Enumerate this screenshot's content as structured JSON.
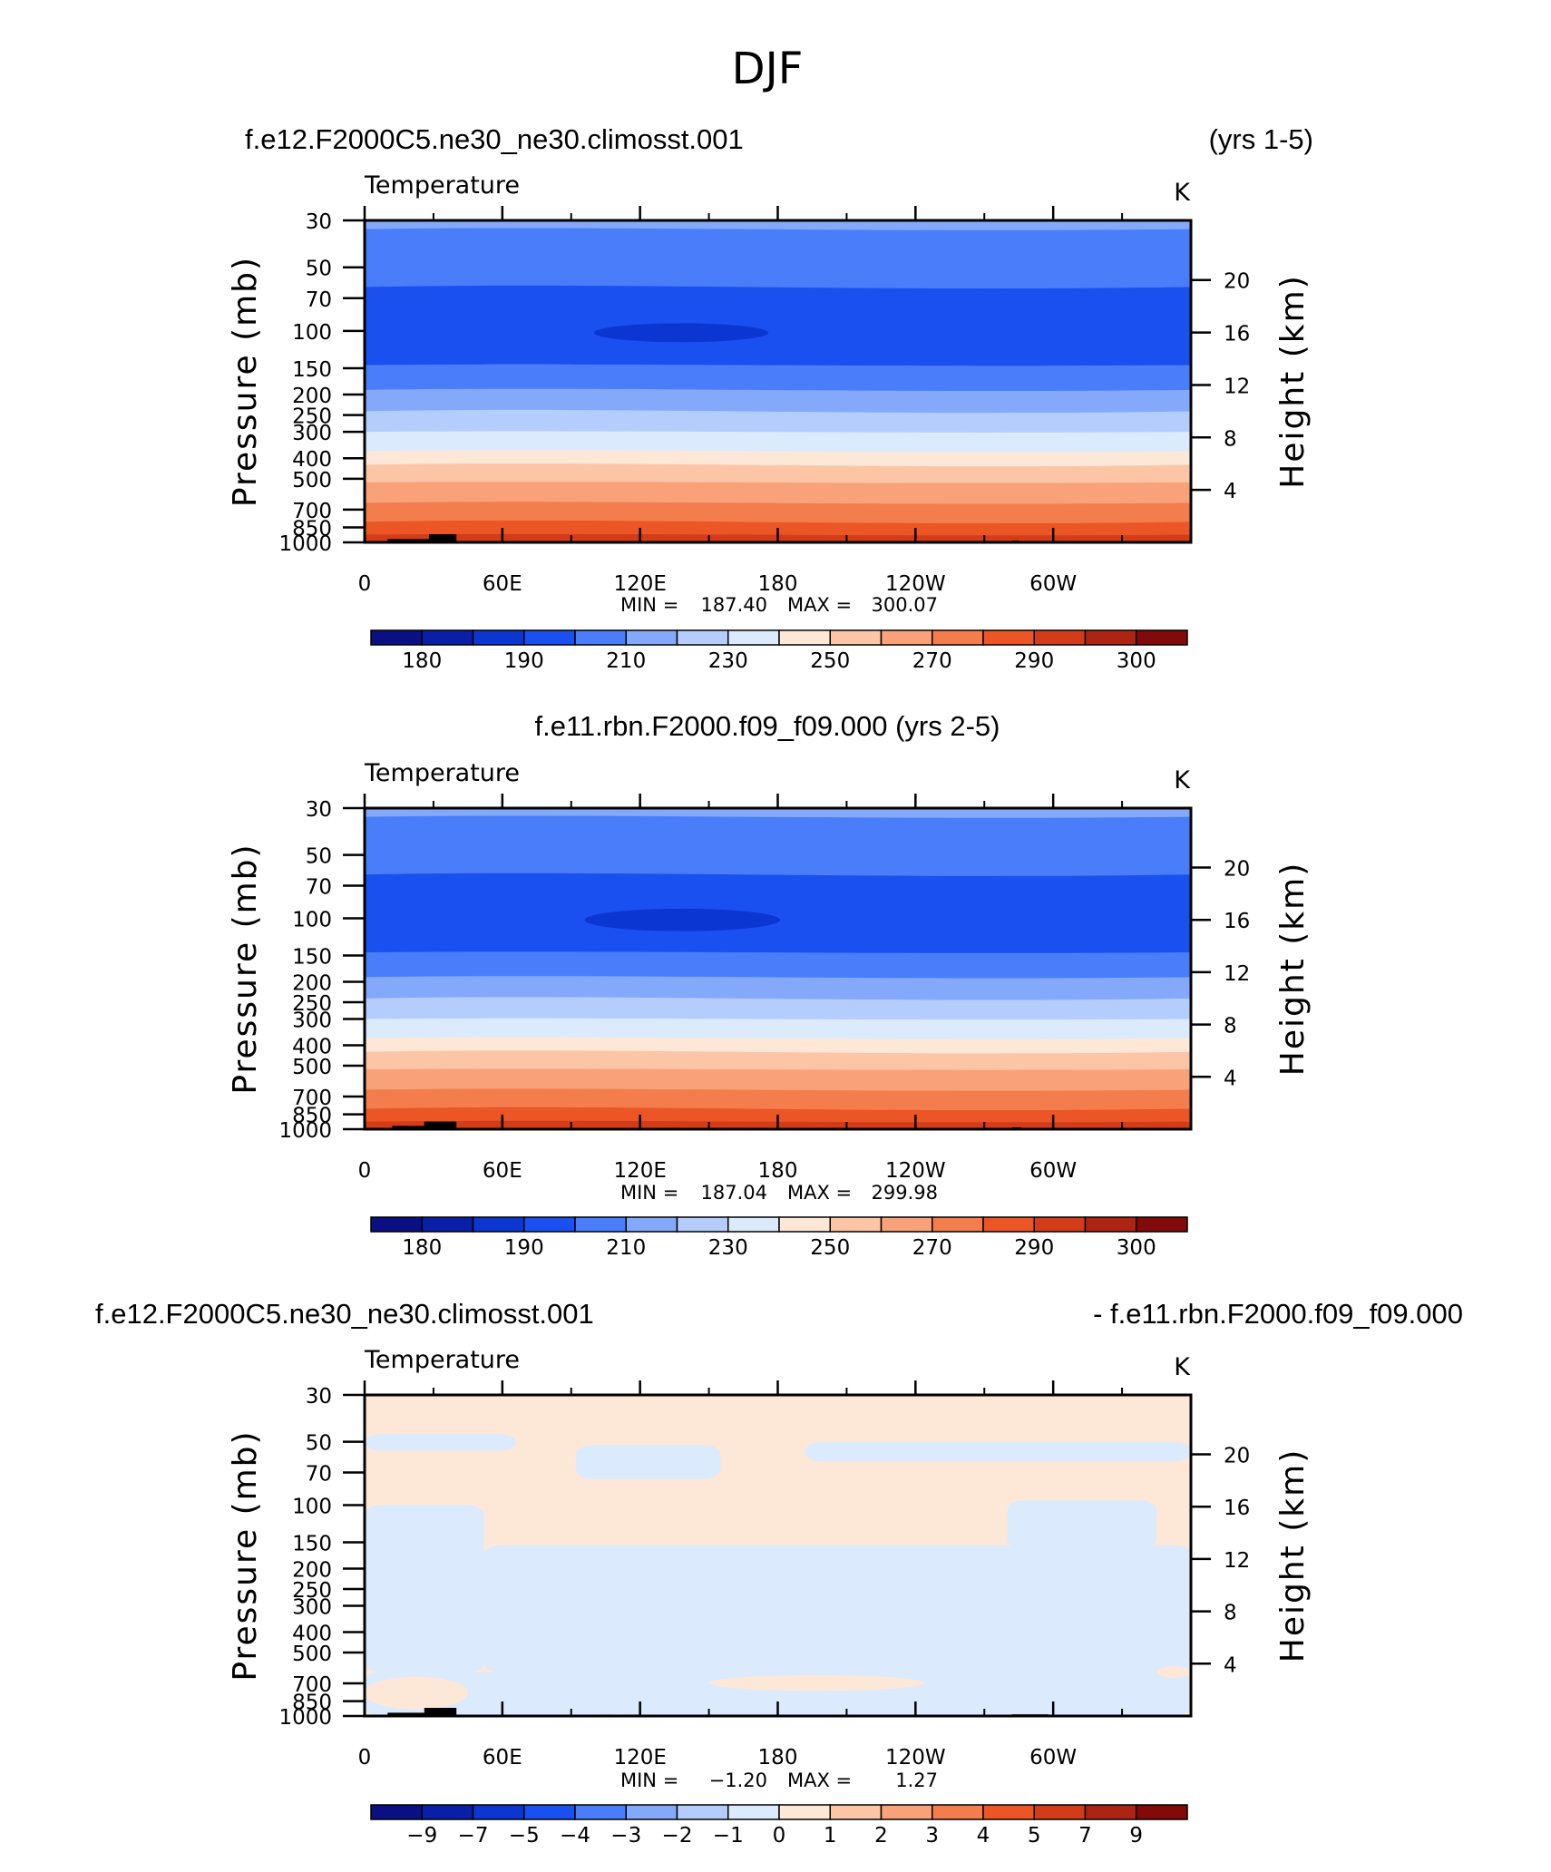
{
  "figure_title": "DJF",
  "chart_data": [
    {
      "type": "heatmap",
      "title_left": "f.e12.F2000C5.ne30_ne30.climosst.001",
      "title_right": "(yrs 1-5)",
      "variable": "Temperature",
      "units": "K",
      "ylabel": "Pressure (mb)",
      "ylabel_right": "Height (km)",
      "xticks": [
        "0",
        "60E",
        "120E",
        "180",
        "120W",
        "60W"
      ],
      "yticks": [
        "30",
        "50",
        "70",
        "100",
        "150",
        "200",
        "250",
        "300",
        "400",
        "500",
        "700",
        "850",
        "1000"
      ],
      "yticks_right": [
        "20",
        "16",
        "12",
        "8",
        "4"
      ],
      "xlim": [
        0,
        360
      ],
      "ylim": [
        1000,
        30
      ],
      "min_label": "MIN =",
      "max_label": "MAX =",
      "min_value": "187.40",
      "max_value": "300.07",
      "colorbar_labels": [
        "180",
        "190",
        "210",
        "230",
        "250",
        "270",
        "290",
        "300"
      ],
      "colorbar_levels": 16,
      "bands": [
        {
          "p_top": 30,
          "p_bottom": 33,
          "level": 5
        },
        {
          "p_top": 33,
          "p_bottom": 62,
          "level": 4
        },
        {
          "p_top": 62,
          "p_bottom": 145,
          "level": 3
        },
        {
          "p_top": 145,
          "p_bottom": 190,
          "level": 4
        },
        {
          "p_top": 190,
          "p_bottom": 240,
          "level": 5
        },
        {
          "p_top": 240,
          "p_bottom": 300,
          "level": 6
        },
        {
          "p_top": 300,
          "p_bottom": 370,
          "level": 7
        },
        {
          "p_top": 370,
          "p_bottom": 430,
          "level": 8
        },
        {
          "p_top": 430,
          "p_bottom": 520,
          "level": 9
        },
        {
          "p_top": 520,
          "p_bottom": 650,
          "level": 10
        },
        {
          "p_top": 650,
          "p_bottom": 800,
          "level": 11
        },
        {
          "p_top": 800,
          "p_bottom": 920,
          "level": 12
        },
        {
          "p_top": 920,
          "p_bottom": 1000,
          "level": 13
        }
      ],
      "cold_core": {
        "lon_start": 92,
        "lon_end": 168,
        "p_top": 92,
        "p_bottom": 113,
        "level": 2
      },
      "terrain": [
        {
          "lon_start": 10,
          "lon_end": 34,
          "p_top": 965
        },
        {
          "lon_start": 28,
          "lon_end": 40,
          "p_top": 915
        },
        {
          "lon_start": 282,
          "lon_end": 285,
          "p_top": 980
        }
      ]
    },
    {
      "type": "heatmap",
      "title_left": "f.e11.rbn.F2000.f09_f09.000 (yrs 2-5)",
      "title_right": "",
      "variable": "Temperature",
      "units": "K",
      "ylabel": "Pressure (mb)",
      "ylabel_right": "Height (km)",
      "xticks": [
        "0",
        "60E",
        "120E",
        "180",
        "120W",
        "60W"
      ],
      "yticks": [
        "30",
        "50",
        "70",
        "100",
        "150",
        "200",
        "250",
        "300",
        "400",
        "500",
        "700",
        "850",
        "1000"
      ],
      "yticks_right": [
        "20",
        "16",
        "12",
        "8",
        "4"
      ],
      "xlim": [
        0,
        360
      ],
      "ylim": [
        1000,
        30
      ],
      "min_label": "MIN =",
      "max_label": "MAX =",
      "min_value": "187.04",
      "max_value": "299.98",
      "colorbar_labels": [
        "180",
        "190",
        "210",
        "230",
        "250",
        "270",
        "290",
        "300"
      ],
      "colorbar_levels": 16,
      "bands": [
        {
          "p_top": 30,
          "p_bottom": 33,
          "level": 5
        },
        {
          "p_top": 33,
          "p_bottom": 62,
          "level": 4
        },
        {
          "p_top": 62,
          "p_bottom": 145,
          "level": 3
        },
        {
          "p_top": 145,
          "p_bottom": 190,
          "level": 4
        },
        {
          "p_top": 190,
          "p_bottom": 240,
          "level": 5
        },
        {
          "p_top": 240,
          "p_bottom": 300,
          "level": 6
        },
        {
          "p_top": 300,
          "p_bottom": 370,
          "level": 7
        },
        {
          "p_top": 370,
          "p_bottom": 430,
          "level": 8
        },
        {
          "p_top": 430,
          "p_bottom": 520,
          "level": 9
        },
        {
          "p_top": 520,
          "p_bottom": 650,
          "level": 10
        },
        {
          "p_top": 650,
          "p_bottom": 800,
          "level": 11
        },
        {
          "p_top": 800,
          "p_bottom": 920,
          "level": 12
        },
        {
          "p_top": 920,
          "p_bottom": 1000,
          "level": 13
        }
      ],
      "cold_core": {
        "lon_start": 88,
        "lon_end": 173,
        "p_top": 90,
        "p_bottom": 115,
        "level": 2
      },
      "terrain": [
        {
          "lon_start": 12,
          "lon_end": 34,
          "p_top": 965
        },
        {
          "lon_start": 26,
          "lon_end": 40,
          "p_top": 920
        },
        {
          "lon_start": 282,
          "lon_end": 286,
          "p_top": 980
        }
      ]
    },
    {
      "type": "heatmap",
      "title_left": "f.e12.F2000C5.ne30_ne30.climosst.001",
      "title_right": "- f.e11.rbn.F2000.f09_f09.000",
      "variable": "Temperature",
      "units": "K",
      "ylabel": "Pressure (mb)",
      "ylabel_right": "Height (km)",
      "xticks": [
        "0",
        "60E",
        "120E",
        "180",
        "120W",
        "60W"
      ],
      "yticks": [
        "30",
        "50",
        "70",
        "100",
        "150",
        "200",
        "250",
        "300",
        "400",
        "500",
        "700",
        "850",
        "1000"
      ],
      "yticks_right": [
        "20",
        "16",
        "12",
        "8",
        "4"
      ],
      "xlim": [
        0,
        360
      ],
      "ylim": [
        1000,
        30
      ],
      "min_label": "MIN =",
      "max_label": "MAX =",
      "min_value": "−1.20",
      "max_value": "1.27",
      "colorbar_labels": [
        "−9",
        "−7",
        "−5",
        "−4",
        "−3",
        "−2",
        "−1",
        "0",
        "1",
        "2",
        "3",
        "4",
        "5",
        "7",
        "9"
      ],
      "colorbar_levels": 16,
      "background_level": 8,
      "negative_level": 7,
      "negative_regions": [
        {
          "lon_start": 0,
          "lon_end": 66,
          "p_top": 46,
          "p_bottom": 55
        },
        {
          "lon_start": 92,
          "lon_end": 155,
          "p_top": 52,
          "p_bottom": 75
        },
        {
          "lon_start": 192,
          "lon_end": 360,
          "p_top": 50,
          "p_bottom": 62
        },
        {
          "lon_start": 0,
          "lon_end": 52,
          "p_top": 100,
          "p_bottom": 620
        },
        {
          "lon_start": 52,
          "lon_end": 360,
          "p_top": 155,
          "p_bottom": 620
        },
        {
          "lon_start": 280,
          "lon_end": 345,
          "p_top": 95,
          "p_bottom": 160
        },
        {
          "lon_start": 0,
          "lon_end": 360,
          "p_top": 620,
          "p_bottom": 1000
        }
      ],
      "positive_patches": [
        {
          "lon_start": 0,
          "lon_end": 45,
          "p_top": 650,
          "p_bottom": 930
        },
        {
          "lon_start": 150,
          "lon_end": 244,
          "p_top": 640,
          "p_bottom": 760
        },
        {
          "lon_start": 345,
          "lon_end": 360,
          "p_top": 580,
          "p_bottom": 660
        }
      ],
      "terrain": [
        {
          "lon_start": 10,
          "lon_end": 34,
          "p_top": 965
        },
        {
          "lon_start": 26,
          "lon_end": 40,
          "p_top": 915
        },
        {
          "lon_start": 102,
          "lon_end": 108,
          "p_top": 985
        },
        {
          "lon_start": 112,
          "lon_end": 120,
          "p_top": 985
        },
        {
          "lon_start": 148,
          "lon_end": 180,
          "p_top": 985
        },
        {
          "lon_start": 282,
          "lon_end": 298,
          "p_top": 982
        }
      ]
    }
  ],
  "palette": [
    "#0a0f82",
    "#0a1fa8",
    "#0c36d2",
    "#1a4ff0",
    "#4a7df9",
    "#84a9fb",
    "#b5cdfd",
    "#dbeafd",
    "#fde8d8",
    "#fcc6a6",
    "#f9a27a",
    "#f37d4d",
    "#ec5525",
    "#d23c18",
    "#ad2512",
    "#830a0a"
  ]
}
